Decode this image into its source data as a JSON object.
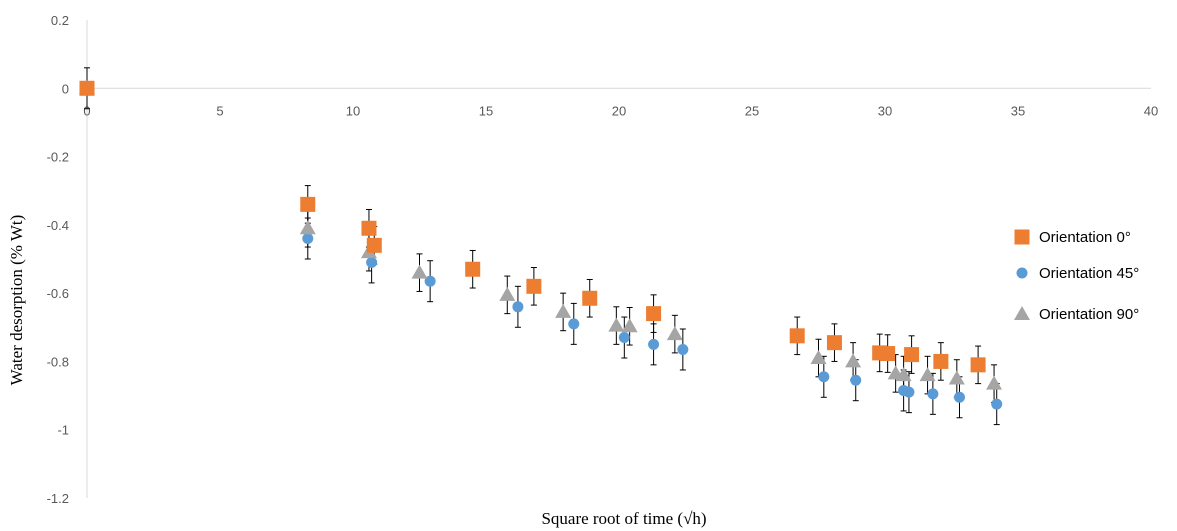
{
  "chart_data": {
    "type": "scatter",
    "title": "",
    "xlabel": "Square root of time (√h)",
    "ylabel": "Water desorption (% Wt)",
    "xlim": [
      0,
      40
    ],
    "ylim": [
      -1.2,
      0.2
    ],
    "x_ticks": [
      0,
      5,
      10,
      15,
      20,
      25,
      30,
      35,
      40
    ],
    "y_ticks": [
      0.2,
      0,
      -0.2,
      -0.4,
      -0.6,
      -0.8,
      -1,
      -1.2
    ],
    "x_tick_labels": [
      "0",
      "5",
      "10",
      "15",
      "20",
      "25",
      "30",
      "35",
      "40"
    ],
    "y_tick_labels": [
      "0.2",
      "0",
      "-0.2",
      "-0.4",
      "-0.6",
      "-0.8",
      "-1",
      "-1.2"
    ],
    "grid": false,
    "error_bars": true,
    "legend_position": "right",
    "series": [
      {
        "name": "Orientation 0°",
        "marker": "square",
        "color": "#ED7D31",
        "points": [
          {
            "x": 0,
            "y": 0,
            "err": 0
          },
          {
            "x": 8.3,
            "y": -0.34,
            "err": 0.055
          },
          {
            "x": 10.6,
            "y": -0.41,
            "err": 0.055
          },
          {
            "x": 10.8,
            "y": -0.46,
            "err": 0.055
          },
          {
            "x": 14.5,
            "y": -0.53,
            "err": 0.055
          },
          {
            "x": 16.8,
            "y": -0.58,
            "err": 0.055
          },
          {
            "x": 18.9,
            "y": -0.615,
            "err": 0.055
          },
          {
            "x": 21.3,
            "y": -0.66,
            "err": 0.055
          },
          {
            "x": 26.7,
            "y": -0.725,
            "err": 0.055
          },
          {
            "x": 28.1,
            "y": -0.745,
            "err": 0.055
          },
          {
            "x": 29.8,
            "y": -0.775,
            "err": 0.055
          },
          {
            "x": 30.1,
            "y": -0.777,
            "err": 0.055
          },
          {
            "x": 31.0,
            "y": -0.78,
            "err": 0.055
          },
          {
            "x": 32.1,
            "y": -0.8,
            "err": 0.055
          },
          {
            "x": 33.5,
            "y": -0.81,
            "err": 0.055
          }
        ]
      },
      {
        "name": "Orientation 45°",
        "marker": "circle",
        "color": "#5B9BD5",
        "points": [
          {
            "x": 0,
            "y": 0,
            "err": 0.06
          },
          {
            "x": 8.3,
            "y": -0.44,
            "err": 0.06
          },
          {
            "x": 10.7,
            "y": -0.51,
            "err": 0.06
          },
          {
            "x": 12.9,
            "y": -0.565,
            "err": 0.06
          },
          {
            "x": 16.2,
            "y": -0.64,
            "err": 0.06
          },
          {
            "x": 18.3,
            "y": -0.69,
            "err": 0.06
          },
          {
            "x": 20.2,
            "y": -0.73,
            "err": 0.06
          },
          {
            "x": 21.3,
            "y": -0.75,
            "err": 0.06
          },
          {
            "x": 22.4,
            "y": -0.765,
            "err": 0.06
          },
          {
            "x": 27.7,
            "y": -0.845,
            "err": 0.06
          },
          {
            "x": 28.9,
            "y": -0.855,
            "err": 0.06
          },
          {
            "x": 30.7,
            "y": -0.885,
            "err": 0.06
          },
          {
            "x": 30.9,
            "y": -0.89,
            "err": 0.06
          },
          {
            "x": 31.8,
            "y": -0.895,
            "err": 0.06
          },
          {
            "x": 32.8,
            "y": -0.905,
            "err": 0.06
          },
          {
            "x": 34.2,
            "y": -0.925,
            "err": 0.06
          }
        ]
      },
      {
        "name": "Orientation 90°",
        "marker": "triangle",
        "color": "#A5A5A5",
        "points": [
          {
            "x": 0,
            "y": 0,
            "err": 0
          },
          {
            "x": 8.3,
            "y": -0.41,
            "err": 0.055
          },
          {
            "x": 10.6,
            "y": -0.48,
            "err": 0.055
          },
          {
            "x": 12.5,
            "y": -0.54,
            "err": 0.055
          },
          {
            "x": 15.8,
            "y": -0.605,
            "err": 0.055
          },
          {
            "x": 17.9,
            "y": -0.655,
            "err": 0.055
          },
          {
            "x": 19.9,
            "y": -0.695,
            "err": 0.055
          },
          {
            "x": 20.4,
            "y": -0.697,
            "err": 0.055
          },
          {
            "x": 22.1,
            "y": -0.72,
            "err": 0.055
          },
          {
            "x": 27.5,
            "y": -0.79,
            "err": 0.055
          },
          {
            "x": 28.8,
            "y": -0.8,
            "err": 0.055
          },
          {
            "x": 30.4,
            "y": -0.835,
            "err": 0.055
          },
          {
            "x": 30.7,
            "y": -0.84,
            "err": 0.055
          },
          {
            "x": 31.6,
            "y": -0.84,
            "err": 0.055
          },
          {
            "x": 32.7,
            "y": -0.85,
            "err": 0.055
          },
          {
            "x": 34.1,
            "y": -0.865,
            "err": 0.055
          }
        ]
      }
    ]
  }
}
